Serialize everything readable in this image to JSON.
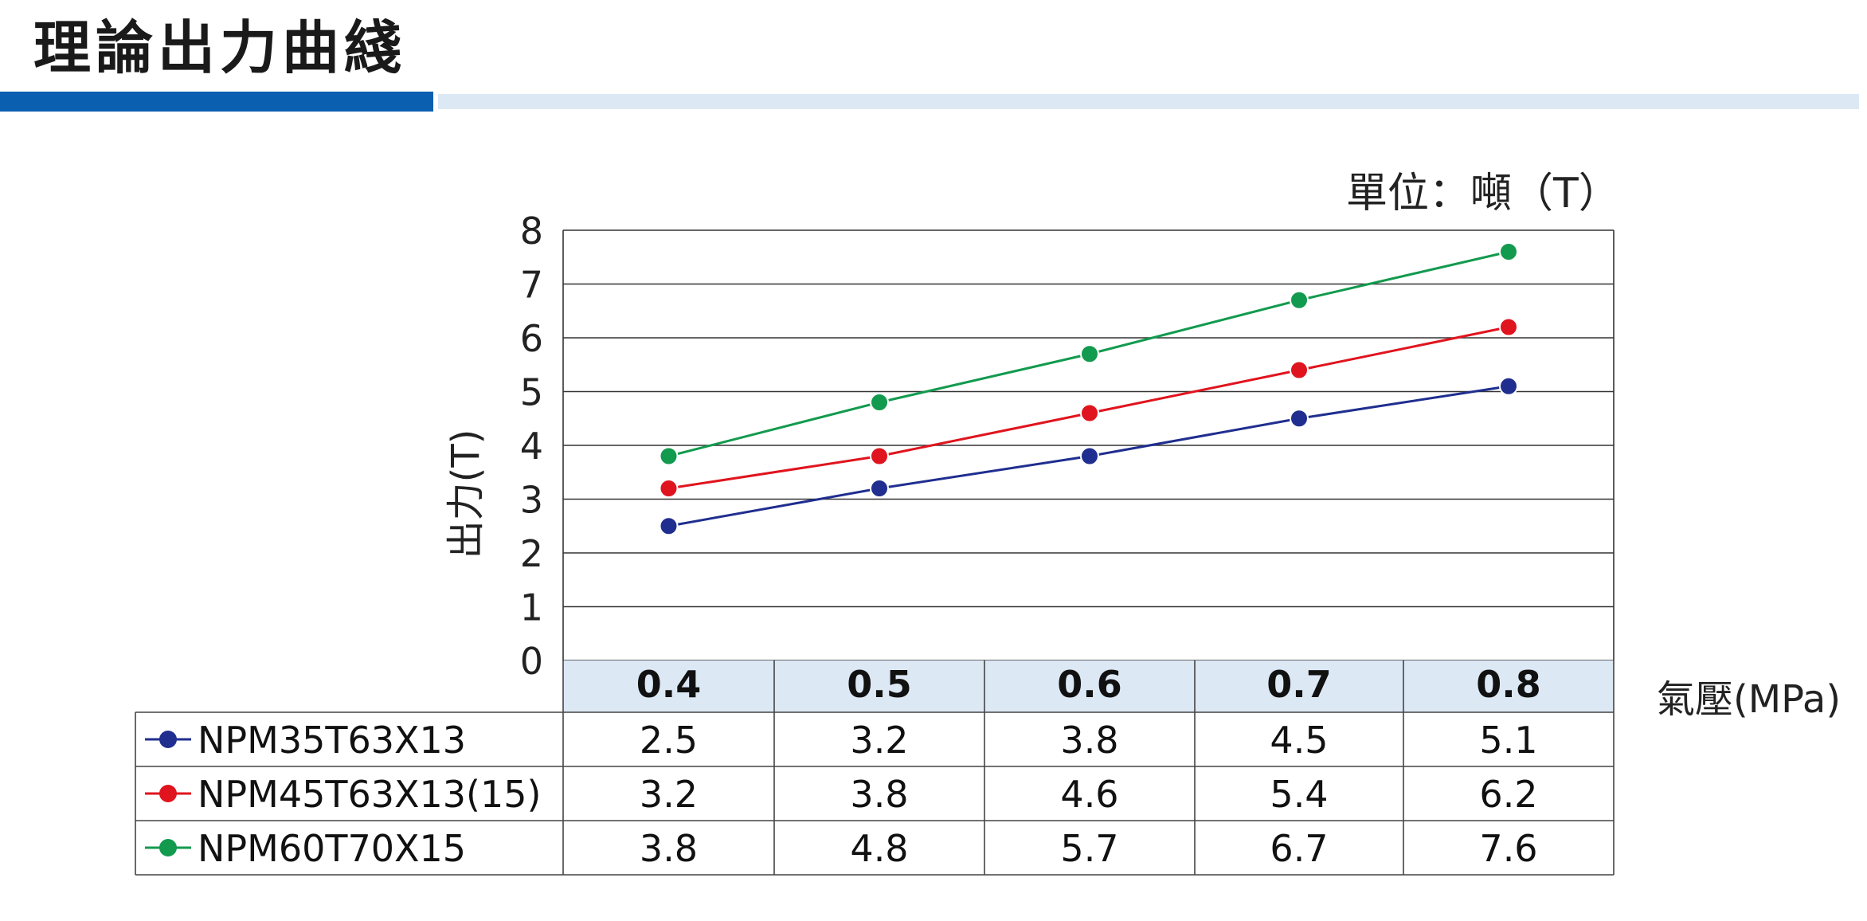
{
  "header": {
    "title": "理論出力曲綫"
  },
  "chart_data": {
    "type": "line",
    "unit_note": "單位：噸（T）",
    "ylabel": "出力(T)",
    "xlabel": "氣壓(MPa)",
    "ylim": [
      0,
      8
    ],
    "yticks": [
      "0",
      "1",
      "2",
      "3",
      "4",
      "5",
      "6",
      "7",
      "8"
    ],
    "categories": [
      "0.4",
      "0.5",
      "0.6",
      "0.7",
      "0.8"
    ],
    "grid": true,
    "legend_placement": "data-table-left",
    "series": [
      {
        "name": "NPM35T63X13",
        "color": "#1f2e8f",
        "values": [
          2.5,
          3.2,
          3.8,
          4.5,
          5.1
        ],
        "labels": [
          "2.5",
          "3.2",
          "3.8",
          "4.5",
          "5.1"
        ]
      },
      {
        "name": "NPM45T63X13(15)",
        "color": "#e0141e",
        "values": [
          3.2,
          3.8,
          4.6,
          5.4,
          6.2
        ],
        "labels": [
          "3.2",
          "3.8",
          "4.6",
          "5.4",
          "6.2"
        ]
      },
      {
        "name": "NPM60T70X15",
        "color": "#129a4e",
        "values": [
          3.8,
          4.8,
          5.7,
          6.7,
          7.6
        ],
        "labels": [
          "3.8",
          "4.8",
          "5.7",
          "6.7",
          "7.6"
        ]
      }
    ]
  },
  "colors": {
    "title_bar_dark": "#0b5fb0",
    "title_bar_light": "#dde8f5",
    "category_header_bg": "#dde8f5"
  }
}
